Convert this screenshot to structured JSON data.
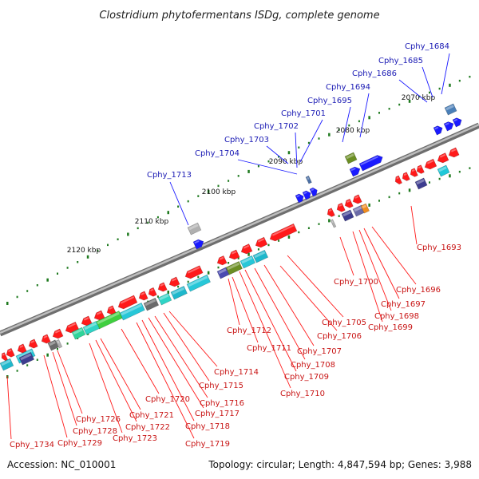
{
  "title": "Clostridium phytofermentans ISDg, complete genome",
  "footer": {
    "accession": "Accession: NC_010001",
    "summary": "Topology: circular; Length: 4,847,594 bp; Genes: 3,988"
  },
  "colors": {
    "backbone": "#8c8c8c",
    "tick_dot": "#1f7a1f",
    "forward_gene": "#1a1aff",
    "reverse_gene": "#ff1a1a",
    "forward_label": "#1a1ab4",
    "reverse_label": "#c81414"
  },
  "scale": {
    "unit": "kbp",
    "ticks": [
      {
        "label": "2070 kbp"
      },
      {
        "label": "2080 kbp"
      },
      {
        "label": "2090 kbp"
      },
      {
        "label": "2100 kbp"
      },
      {
        "label": "2110 kbp"
      },
      {
        "label": "2120 kbp"
      }
    ]
  },
  "genes_top": [
    {
      "label": "Cphy_1684"
    },
    {
      "label": "Cphy_1685"
    },
    {
      "label": "Cphy_1686"
    },
    {
      "label": "Cphy_1694"
    },
    {
      "label": "Cphy_1695"
    },
    {
      "label": "Cphy_1701"
    },
    {
      "label": "Cphy_1702"
    },
    {
      "label": "Cphy_1703"
    },
    {
      "label": "Cphy_1704"
    },
    {
      "label": "Cphy_1713"
    }
  ],
  "genes_bottom": [
    {
      "label": "Cphy_1693"
    },
    {
      "label": "Cphy_1696"
    },
    {
      "label": "Cphy_1697"
    },
    {
      "label": "Cphy_1698"
    },
    {
      "label": "Cphy_1699"
    },
    {
      "label": "Cphy_1700"
    },
    {
      "label": "Cphy_1705"
    },
    {
      "label": "Cphy_1706"
    },
    {
      "label": "Cphy_1707"
    },
    {
      "label": "Cphy_1708"
    },
    {
      "label": "Cphy_1709"
    },
    {
      "label": "Cphy_1710"
    },
    {
      "label": "Cphy_1711"
    },
    {
      "label": "Cphy_1712"
    },
    {
      "label": "Cphy_1714"
    },
    {
      "label": "Cphy_1715"
    },
    {
      "label": "Cphy_1716"
    },
    {
      "label": "Cphy_1717"
    },
    {
      "label": "Cphy_1718"
    },
    {
      "label": "Cphy_1719"
    },
    {
      "label": "Cphy_1720"
    },
    {
      "label": "Cphy_1721"
    },
    {
      "label": "Cphy_1722"
    },
    {
      "label": "Cphy_1723"
    },
    {
      "label": "Cphy_1726"
    },
    {
      "label": "Cphy_1728"
    },
    {
      "label": "Cphy_1729"
    },
    {
      "label": "Cphy_1734"
    }
  ]
}
